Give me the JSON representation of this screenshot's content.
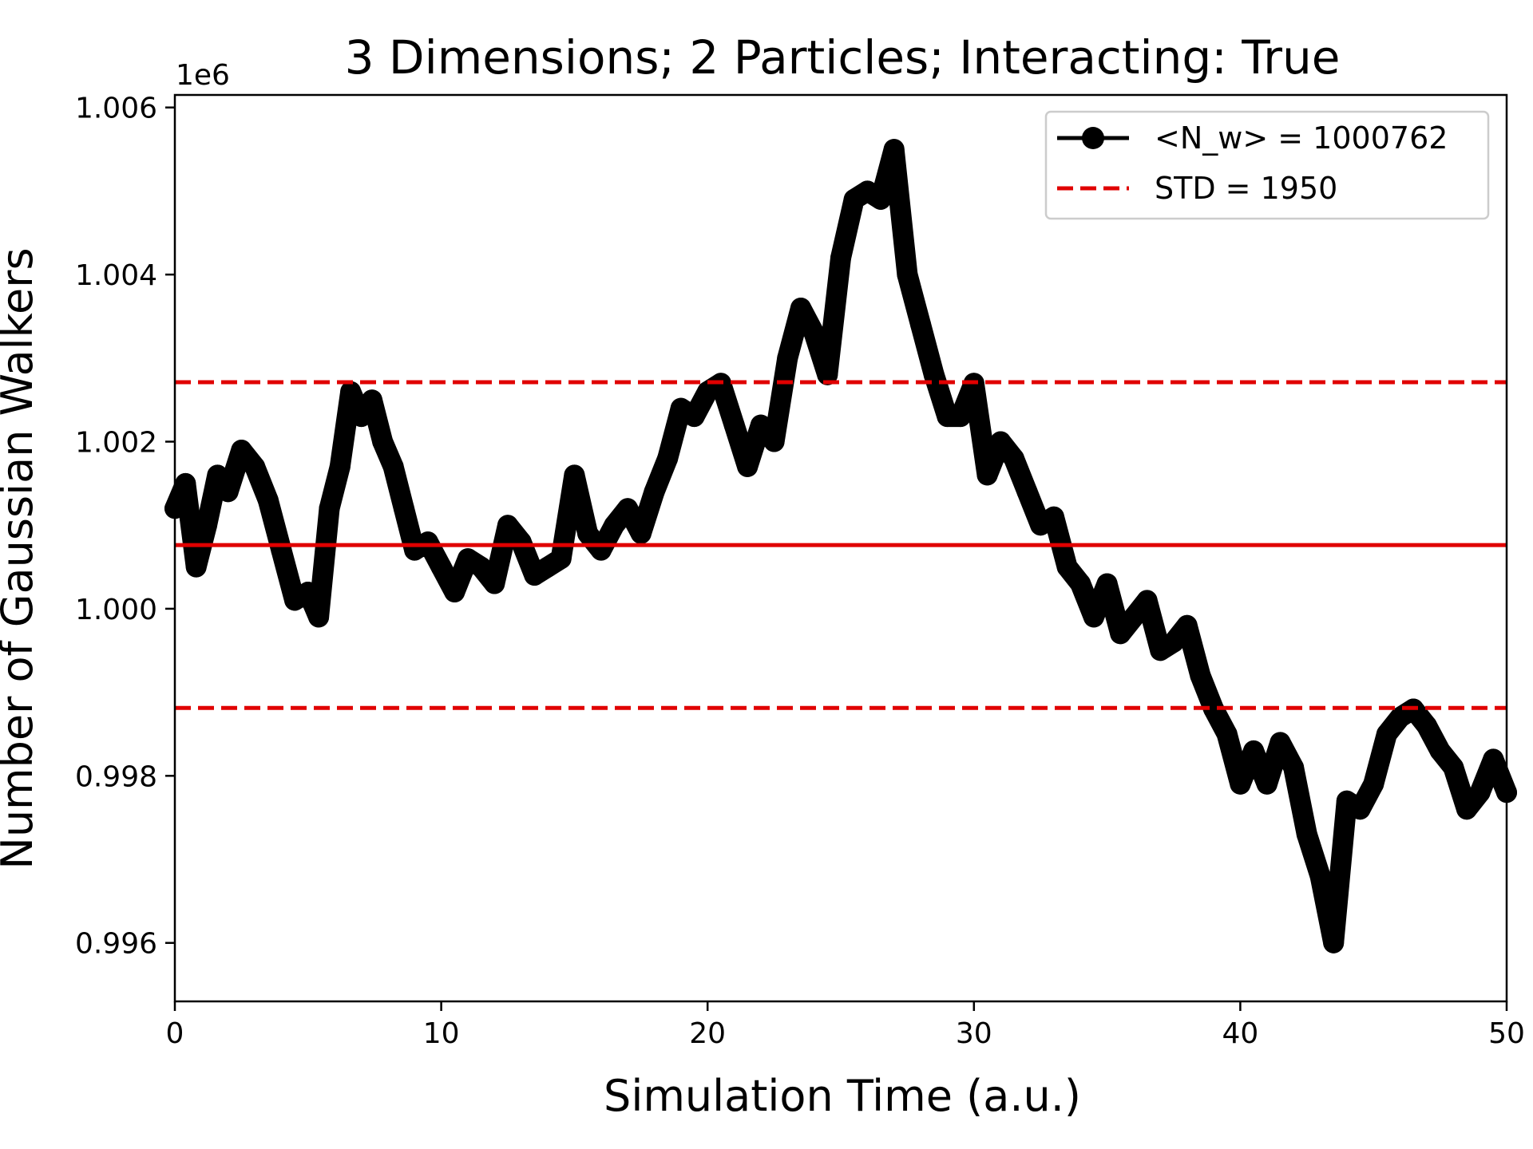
{
  "chart_data": {
    "type": "line",
    "title": "3 Dimensions; 2 Particles; Interacting: True",
    "xlabel": "Simulation Time (a.u.)",
    "ylabel": "Number of Gaussian Walkers",
    "y_offset_label": "1e6",
    "xlim": [
      0,
      50
    ],
    "ylim": [
      995300,
      1006150
    ],
    "x_ticks": [
      0,
      10,
      20,
      30,
      40,
      50
    ],
    "x_tick_labels": [
      "0",
      "10",
      "20",
      "30",
      "40",
      "50"
    ],
    "y_ticks": [
      996000,
      998000,
      1000000,
      1002000,
      1004000,
      1006000
    ],
    "y_tick_labels": [
      "0.996",
      "0.998",
      "1.000",
      "1.002",
      "1.004",
      "1.006"
    ],
    "grid": false,
    "legend_position": "top-right",
    "series": [
      {
        "name": "<N_w> = 1000762",
        "style": "line-with-circle-markers",
        "color": "#000000",
        "x": [
          0,
          0.4,
          0.8,
          1.2,
          1.6,
          2.0,
          2.5,
          3.0,
          3.5,
          4.0,
          4.5,
          5.0,
          5.4,
          5.8,
          6.2,
          6.6,
          7.0,
          7.4,
          7.8,
          8.2,
          8.6,
          9.0,
          9.5,
          10.0,
          10.5,
          11.0,
          11.5,
          12.0,
          12.5,
          13.0,
          13.5,
          14.0,
          14.5,
          15.0,
          15.5,
          16.0,
          16.5,
          17.0,
          17.5,
          18.0,
          18.5,
          19.0,
          19.5,
          20.0,
          20.5,
          21.0,
          21.5,
          22.0,
          22.5,
          23.0,
          23.5,
          24.0,
          24.5,
          25.0,
          25.5,
          26.0,
          26.5,
          27.0,
          27.5,
          28.0,
          28.5,
          29.0,
          29.5,
          30.0,
          30.5,
          31.0,
          31.5,
          32.0,
          32.5,
          33.0,
          33.5,
          34.0,
          34.5,
          35.0,
          35.5,
          36.0,
          36.5,
          37.0,
          37.5,
          38.0,
          38.5,
          39.0,
          39.5,
          40.0,
          40.5,
          41.0,
          41.5,
          42.0,
          42.5,
          43.0,
          43.5,
          44.0,
          44.5,
          45.0,
          45.5,
          46.0,
          46.5,
          47.0,
          47.5,
          48.0,
          48.5,
          49.0,
          49.5,
          50.0
        ],
        "y": [
          1001200,
          1001500,
          1000500,
          1001000,
          1001600,
          1001400,
          1001900,
          1001700,
          1001300,
          1000700,
          1000100,
          1000200,
          999900,
          1001200,
          1001700,
          1002600,
          1002300,
          1002500,
          1002000,
          1001700,
          1001200,
          1000700,
          1000800,
          1000500,
          1000200,
          1000600,
          1000500,
          1000300,
          1001000,
          1000800,
          1000400,
          1000500,
          1000600,
          1001600,
          1000900,
          1000700,
          1001000,
          1001200,
          1000900,
          1001400,
          1001800,
          1002400,
          1002300,
          1002600,
          1002700,
          1002200,
          1001700,
          1002200,
          1002000,
          1003000,
          1003600,
          1003300,
          1002800,
          1004200,
          1004900,
          1005000,
          1004900,
          1005500,
          1004000,
          1003400,
          1002800,
          1002300,
          1002300,
          1002700,
          1001600,
          1002000,
          1001800,
          1001400,
          1001000,
          1001100,
          1000500,
          1000300,
          999900,
          1000300,
          999700,
          999900,
          1000100,
          999500,
          999600,
          999800,
          999200,
          998800,
          998500,
          997900,
          998300,
          997900,
          998400,
          998100,
          997300,
          996800,
          996000,
          997700,
          997600,
          997900,
          998500,
          998700,
          998800,
          998600,
          998300,
          998100,
          997600,
          997800,
          998200,
          997800
        ]
      }
    ],
    "reference_lines": [
      {
        "name": "mean",
        "value": 1000762,
        "style": "solid",
        "color": "#e00000"
      },
      {
        "name": "STD = 1950",
        "value": 1002712,
        "style": "dashed",
        "color": "#e00000"
      },
      {
        "name": "STD = 1950",
        "value": 998812,
        "style": "dashed",
        "color": "#e00000"
      }
    ],
    "legend": [
      {
        "label": "<N_w> = 1000762",
        "style": "line-with-circle-markers",
        "color": "#000000"
      },
      {
        "label": "STD = 1950",
        "style": "dashed",
        "color": "#e00000"
      }
    ]
  }
}
